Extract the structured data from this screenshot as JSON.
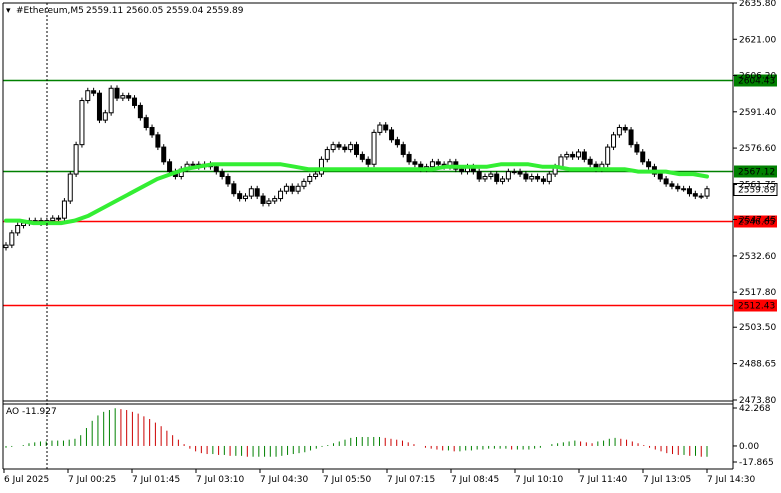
{
  "chart_data": [
    {
      "type": "candlestick",
      "title": "#Ethereum,M5",
      "ohlc_label": "2559.11 2560.05 2559.04 2559.89",
      "y_ticks": [
        2473.8,
        2488.65,
        2503.5,
        2517.8,
        2532.6,
        2547.45,
        2561.75,
        2576.6,
        2591.4,
        2606.2,
        2621.0,
        2635.8
      ],
      "ylim": [
        2473.8,
        2635.8
      ],
      "x_ticks": [
        "6 Jul 2025",
        "7 Jul 00:25",
        "7 Jul 01:45",
        "7 Jul 03:10",
        "7 Jul 04:30",
        "7 Jul 05:50",
        "7 Jul 07:15",
        "7 Jul 08:45",
        "7 Jul 10:10",
        "7 Jul 11:40",
        "7 Jul 13:05",
        "7 Jul 14:30"
      ],
      "levels": [
        {
          "value": 2604.43,
          "label": "2604.43",
          "color": "#008000"
        },
        {
          "value": 2567.12,
          "label": "2567.12",
          "color": "#008000"
        },
        {
          "value": 2546.65,
          "label": "2546.65",
          "color": "#ff0000"
        },
        {
          "value": 2512.43,
          "label": "2512.43",
          "color": "#ff0000"
        }
      ],
      "current_price": {
        "value": 2559.89,
        "label": "2559.89"
      },
      "candles_close": [
        2537,
        2542,
        2545,
        2546,
        2547,
        2547,
        2546,
        2547,
        2548,
        2548,
        2555,
        2566,
        2578,
        2596,
        2600,
        2599,
        2588,
        2591,
        2601,
        2597,
        2598,
        2597,
        2594,
        2589,
        2585,
        2582,
        2577,
        2571,
        2567,
        2565,
        2568,
        2570,
        2570,
        2569,
        2570,
        2569,
        2567,
        2565,
        2562,
        2558,
        2556,
        2557,
        2560,
        2557,
        2554,
        2555,
        2556,
        2559,
        2561,
        2559,
        2561,
        2563,
        2565,
        2566,
        2572,
        2576,
        2578,
        2577,
        2576,
        2578,
        2574,
        2572,
        2570,
        2583,
        2586,
        2584,
        2580,
        2578,
        2574,
        2571,
        2570,
        2568,
        2569,
        2571,
        2570,
        2569,
        2571,
        2568,
        2567,
        2569,
        2567,
        2564,
        2565,
        2566,
        2563,
        2564,
        2567,
        2567,
        2566,
        2564,
        2565,
        2564,
        2563,
        2566,
        2569,
        2573,
        2574,
        2573,
        2575,
        2572,
        2570,
        2568,
        2570,
        2577,
        2582,
        2585,
        2584,
        2578,
        2575,
        2571,
        2569,
        2566,
        2564,
        2562,
        2561,
        2560,
        2560,
        2558,
        2557,
        2557,
        2560
      ],
      "moving_average": [
        2547,
        2547,
        2546,
        2546,
        2546,
        2547,
        2549,
        2552,
        2555,
        2558,
        2561,
        2564,
        2566,
        2568,
        2569,
        2570,
        2570,
        2570,
        2570,
        2570,
        2570,
        2569,
        2568,
        2568,
        2568,
        2568,
        2568,
        2568,
        2568,
        2568,
        2568,
        2568,
        2569,
        2569,
        2569,
        2569,
        2570,
        2570,
        2570,
        2569,
        2569,
        2568,
        2568,
        2568,
        2568,
        2568,
        2567,
        2567,
        2567,
        2566,
        2566,
        2565
      ],
      "ao_indicator": {
        "label": "AO -11.927",
        "y_ticks": [
          "42.268",
          "0.00",
          "-17.865"
        ],
        "ylim": [
          -17.865,
          42.268
        ],
        "values": [
          -2,
          -1,
          0,
          1,
          3,
          4,
          5,
          5,
          6,
          6,
          6,
          7,
          8,
          12,
          20,
          28,
          34,
          38,
          40,
          42,
          41,
          40,
          38,
          36,
          33,
          30,
          26,
          22,
          17,
          12,
          7,
          2,
          -3,
          -6,
          -8,
          -9,
          -9,
          -10,
          -10,
          -11,
          -11,
          -11,
          -12,
          -12,
          -12,
          -12,
          -12,
          -12,
          -11,
          -10,
          -9,
          -8,
          -7,
          -5,
          -3,
          -1,
          1,
          3,
          5,
          7,
          9,
          10,
          10,
          10,
          10,
          10,
          9,
          8,
          7,
          6,
          4,
          2,
          0,
          -2,
          -3,
          -4,
          -5,
          -5,
          -6,
          -6,
          -5,
          -5,
          -4,
          -4,
          -3,
          -3,
          -3,
          -3,
          -4,
          -4,
          -4,
          -4,
          -3,
          -2,
          0,
          2,
          3,
          4,
          5,
          6,
          5,
          4,
          3,
          5,
          6,
          8,
          9,
          8,
          7,
          5,
          3,
          1,
          -2,
          -4,
          -6,
          -8,
          -9,
          -10,
          -10,
          -11,
          -11,
          -12,
          -12
        ]
      }
    }
  ]
}
